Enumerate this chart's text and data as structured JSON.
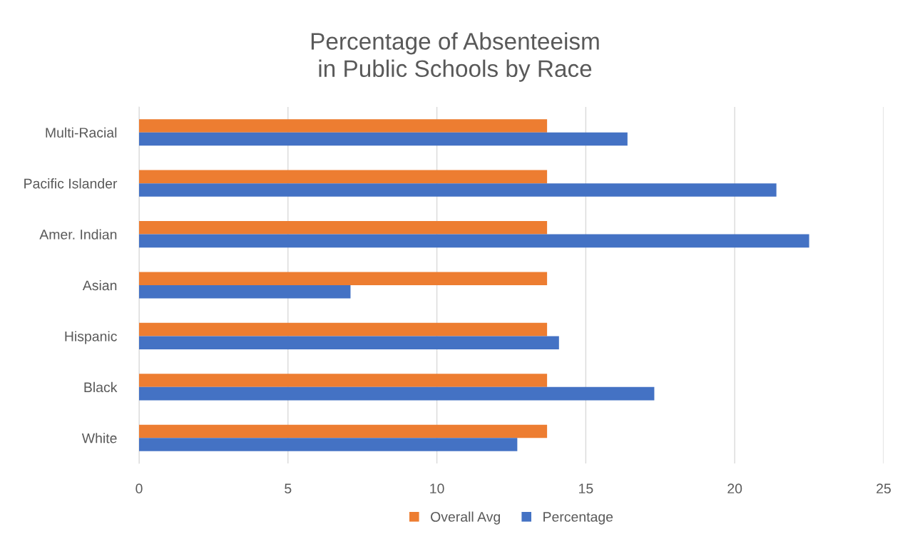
{
  "chart_data": {
    "type": "bar",
    "orientation": "horizontal",
    "title": "Percentage of Absenteeism\nin Public Schools by Race",
    "categories": [
      "Multi-Racial",
      "Pacific Islander",
      "Amer. Indian",
      "Asian",
      "Hispanic",
      "Black",
      "White"
    ],
    "series": [
      {
        "name": "Overall Avg",
        "color": "#ed7d31",
        "values": [
          13.7,
          13.7,
          13.7,
          13.7,
          13.7,
          13.7,
          13.7
        ]
      },
      {
        "name": "Percentage",
        "color": "#4472c4",
        "values": [
          16.4,
          21.4,
          22.5,
          7.1,
          14.1,
          17.3,
          12.7
        ]
      }
    ],
    "xlim": [
      0,
      25
    ],
    "xticks": [
      0,
      5,
      10,
      15,
      20,
      25
    ],
    "grid": "x",
    "legend": "bottom"
  }
}
